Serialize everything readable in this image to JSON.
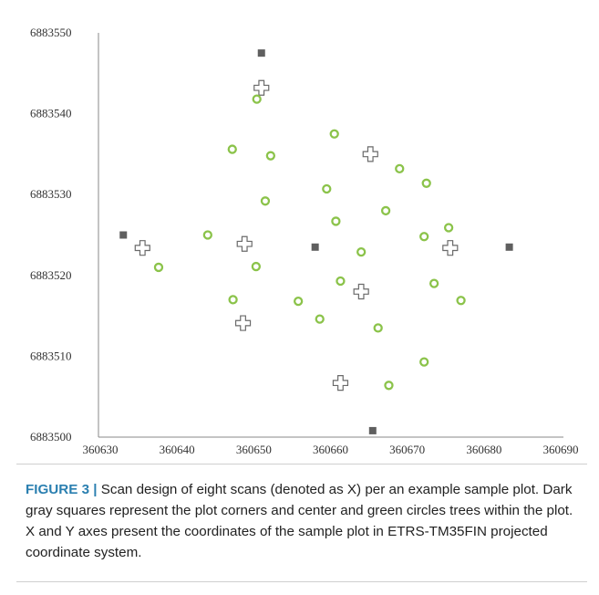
{
  "chart_data": {
    "type": "scatter",
    "xlim": [
      360630,
      360690
    ],
    "ylim": [
      6883500,
      6883550
    ],
    "x_ticks": [
      "360630",
      "360640",
      "360650",
      "360660",
      "360670",
      "360680",
      "360690"
    ],
    "y_ticks": [
      "6883550",
      "6883540",
      "6883530",
      "6883520",
      "6883510",
      "6883500"
    ],
    "grid": false,
    "series": [
      {
        "marker": "square",
        "color": "#5f5f5f",
        "points": [
          [
            360651.0,
            6883547.5
          ],
          [
            360633.0,
            6883525.0
          ],
          [
            360658.0,
            6883523.5
          ],
          [
            360683.3,
            6883523.5
          ],
          [
            360665.5,
            6883500.8
          ]
        ]
      },
      {
        "marker": "cross",
        "color": "#6a6a6a",
        "points": [
          [
            360651.0,
            6883543.2
          ],
          [
            360665.2,
            6883535.0
          ],
          [
            360635.5,
            6883523.4
          ],
          [
            360648.8,
            6883523.9
          ],
          [
            360675.6,
            6883523.4
          ],
          [
            360664.0,
            6883518.0
          ],
          [
            360648.6,
            6883514.1
          ],
          [
            360661.3,
            6883506.7
          ]
        ]
      },
      {
        "marker": "circle",
        "color": "#8bc34a",
        "points": [
          [
            360650.4,
            6883541.8
          ],
          [
            360660.5,
            6883537.5
          ],
          [
            360647.2,
            6883535.6
          ],
          [
            360652.2,
            6883534.8
          ],
          [
            360669.0,
            6883533.2
          ],
          [
            360672.5,
            6883531.4
          ],
          [
            360659.5,
            6883530.7
          ],
          [
            360651.5,
            6883529.2
          ],
          [
            360667.2,
            6883528.0
          ],
          [
            360660.7,
            6883526.7
          ],
          [
            360675.4,
            6883525.9
          ],
          [
            360644.0,
            6883525.0
          ],
          [
            360672.2,
            6883524.8
          ],
          [
            360664.0,
            6883522.9
          ],
          [
            360637.6,
            6883521.0
          ],
          [
            360650.3,
            6883521.1
          ],
          [
            360661.3,
            6883519.3
          ],
          [
            360673.5,
            6883519.0
          ],
          [
            360647.3,
            6883517.0
          ],
          [
            360655.8,
            6883516.8
          ],
          [
            360677.0,
            6883516.9
          ],
          [
            360658.6,
            6883514.6
          ],
          [
            360666.2,
            6883513.5
          ],
          [
            360672.2,
            6883509.3
          ],
          [
            360667.6,
            6883506.4
          ]
        ]
      }
    ]
  },
  "caption": {
    "label": "FIGURE 3 |",
    "text": "Scan design of eight scans (denoted as X) per an example sample plot. Dark gray squares represent the plot corners and center and green circles trees within the plot. X and Y axes present the coordinates of the sample plot in ETRS-TM35FIN projected coordinate system."
  }
}
